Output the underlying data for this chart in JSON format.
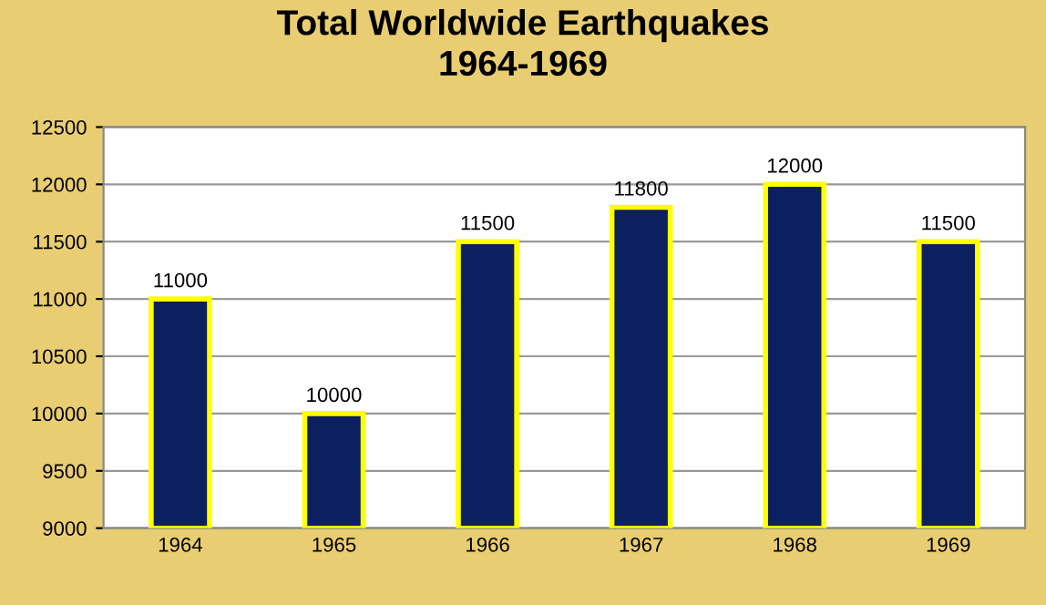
{
  "chart_data": {
    "type": "bar",
    "title": "Total Worldwide Earthquakes\n1964-1969",
    "categories": [
      "1964",
      "1965",
      "1966",
      "1967",
      "1968",
      "1969"
    ],
    "series": [
      {
        "color": "#0c1f5e",
        "values": [
          11000,
          10000,
          11500,
          11800,
          12000,
          11500
        ]
      }
    ],
    "ylim": [
      9000,
      12500
    ],
    "yticks": [
      9000,
      9500,
      10000,
      10500,
      11000,
      11500,
      12000,
      12500
    ],
    "grid": "y",
    "data_labels": true,
    "legend": false
  }
}
